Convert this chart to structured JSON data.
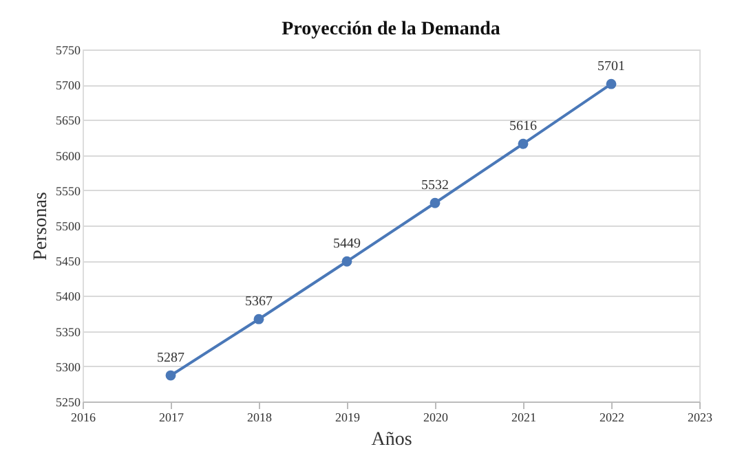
{
  "chart_data": {
    "type": "line",
    "title": "Proyección de la Demanda",
    "xlabel": "Años",
    "ylabel": "Personas",
    "x": [
      2017,
      2018,
      2019,
      2020,
      2021,
      2022
    ],
    "series": [
      {
        "color": "#4a78b8",
        "values": [
          5287,
          5367,
          5449,
          5532,
          5616,
          5701
        ]
      }
    ],
    "xlim": [
      2016,
      2023
    ],
    "xticks": [
      2016,
      2017,
      2018,
      2019,
      2020,
      2021,
      2022,
      2023
    ],
    "ylim": [
      5250,
      5750
    ],
    "yticks": [
      5250,
      5300,
      5350,
      5400,
      5450,
      5500,
      5550,
      5600,
      5650,
      5700,
      5750
    ],
    "grid": "y",
    "marker": "circle",
    "line_style": "solid",
    "data_labels": true
  }
}
